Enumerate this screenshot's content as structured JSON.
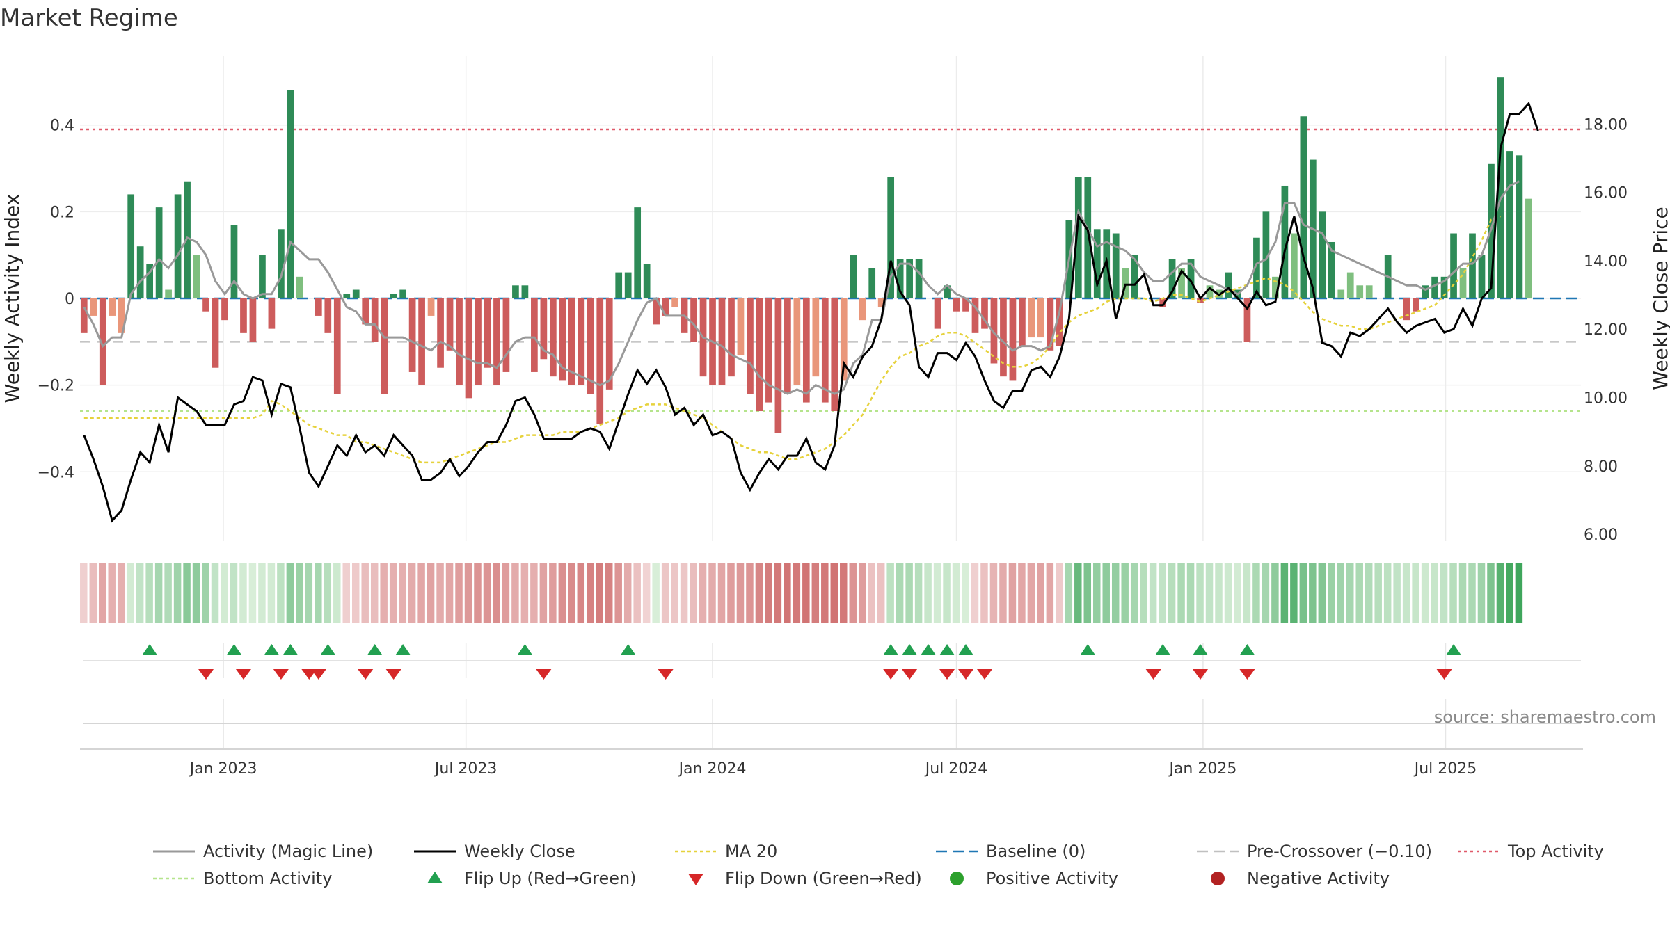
{
  "title": "Market Regime",
  "source": "source: sharemaestro.com",
  "colors": {
    "pos_strong": "#2e8b57",
    "pos_light": "#7fbf7f",
    "neg_strong": "#cd5c5c",
    "neg_light": "#e9967a",
    "activity_line": "#999999",
    "close_line": "#000000",
    "ma20": "#e6d23c",
    "baseline": "#1f77b4",
    "precross": "#c0c0c0",
    "top": "#e05a6a",
    "bottom": "#b5e48c",
    "flip_up": "#22a050",
    "flip_down": "#d62728",
    "pos_dot": "#2ca02c",
    "neg_dot": "#b22222"
  },
  "chart_data": {
    "type": "bar",
    "title": "Market Regime",
    "ylabel_left": "Weekly Activity Index",
    "ylabel_right": "Weekly Close Price",
    "ylim_left": [
      -0.56,
      0.56
    ],
    "ylim_right": [
      5.8,
      20.0
    ],
    "yticks_left": [
      -0.4,
      -0.2,
      0,
      0.2,
      0.4
    ],
    "ytick_labels_left": [
      "−0.4",
      "−0.2",
      "0",
      "0.2",
      "0.4"
    ],
    "yticks_right": [
      6,
      8,
      10,
      12,
      14,
      16,
      18
    ],
    "ytick_labels_right": [
      "6.00",
      "8.00",
      "10.00",
      "12.00",
      "14.00",
      "16.00",
      "18.00"
    ],
    "x_start": "2022-09-19",
    "x_step_days": 7,
    "xlim": [
      "2022-09-16",
      "2025-10-10"
    ],
    "xticks": [
      "2023-01-01",
      "2023-07-01",
      "2024-01-01",
      "2024-07-01",
      "2025-01-01",
      "2025-07-01"
    ],
    "xtick_labels": [
      "Jan 2023",
      "Jul 2023",
      "Jan 2024",
      "Jul 2024",
      "Jan 2025",
      "Jul 2025"
    ],
    "reference_lines": {
      "baseline": 0,
      "pre_crossover": -0.1,
      "top_activity": 0.39,
      "bottom_activity": -0.26
    },
    "activity": [
      -0.08,
      -0.04,
      -0.2,
      -0.04,
      -0.08,
      0.24,
      0.12,
      0.08,
      0.21,
      0.02,
      0.24,
      0.27,
      0.1,
      -0.03,
      -0.16,
      -0.05,
      0.17,
      -0.08,
      -0.1,
      0.1,
      -0.07,
      0.16,
      0.48,
      0.05,
      0,
      -0.04,
      -0.08,
      -0.22,
      0.01,
      0.02,
      -0.06,
      -0.1,
      -0.22,
      0.01,
      0.02,
      -0.17,
      -0.2,
      -0.04,
      -0.16,
      -0.12,
      -0.2,
      -0.23,
      -0.2,
      -0.16,
      -0.2,
      -0.17,
      0.03,
      0.03,
      -0.17,
      -0.14,
      -0.18,
      -0.19,
      -0.2,
      -0.2,
      -0.22,
      -0.29,
      -0.21,
      0.06,
      0.06,
      0.21,
      0.08,
      -0.06,
      -0.04,
      -0.02,
      -0.08,
      -0.1,
      -0.18,
      -0.2,
      -0.2,
      -0.18,
      -0.13,
      -0.22,
      -0.26,
      -0.24,
      -0.31,
      -0.22,
      -0.2,
      -0.24,
      -0.18,
      -0.24,
      -0.26,
      -0.19,
      0.1,
      -0.05,
      0.07,
      -0.02,
      0.28,
      0.09,
      0.09,
      0.09,
      0,
      -0.07,
      0.03,
      -0.03,
      -0.03,
      -0.08,
      -0.07,
      -0.15,
      -0.18,
      -0.19,
      -0.11,
      -0.09,
      -0.09,
      -0.12,
      -0.11,
      0.18,
      0.28,
      0.28,
      0.16,
      0.16,
      0.15,
      0.07,
      0.1,
      0,
      0,
      -0.02,
      0.09,
      0.07,
      0.09,
      -0.01,
      0.03,
      0.02,
      0.06,
      0.02,
      -0.1,
      0.14,
      0.2,
      0.05,
      0.26,
      0.15,
      0.42,
      0.32,
      0.2,
      0.13,
      0.02,
      0.06,
      0.03,
      0.03,
      0,
      0.1,
      0,
      -0.05,
      -0.03,
      0.03,
      0.05,
      0.05,
      0.15,
      0.07,
      0.15,
      0.1,
      0.31,
      0.51,
      0.34,
      0.33,
      0.23
    ],
    "magic_line": [
      -0.02,
      -0.06,
      -0.11,
      -0.09,
      -0.09,
      0.01,
      0.04,
      0.06,
      0.09,
      0.07,
      0.1,
      0.14,
      0.13,
      0.1,
      0.04,
      0.01,
      0.04,
      0.01,
      0,
      0.01,
      0.01,
      0.05,
      0.13,
      0.11,
      0.09,
      0.09,
      0.06,
      0.02,
      -0.02,
      -0.03,
      -0.06,
      -0.06,
      -0.09,
      -0.09,
      -0.09,
      -0.1,
      -0.11,
      -0.12,
      -0.1,
      -0.11,
      -0.13,
      -0.14,
      -0.15,
      -0.15,
      -0.16,
      -0.13,
      -0.1,
      -0.09,
      -0.09,
      -0.12,
      -0.13,
      -0.16,
      -0.17,
      -0.18,
      -0.19,
      -0.2,
      -0.19,
      -0.15,
      -0.1,
      -0.05,
      -0.01,
      0,
      -0.04,
      -0.04,
      -0.04,
      -0.06,
      -0.09,
      -0.1,
      -0.11,
      -0.13,
      -0.14,
      -0.15,
      -0.18,
      -0.2,
      -0.21,
      -0.22,
      -0.21,
      -0.22,
      -0.2,
      -0.21,
      -0.22,
      -0.21,
      -0.15,
      -0.13,
      -0.05,
      -0.05,
      0.05,
      0.08,
      0.08,
      0.06,
      0.03,
      0.01,
      0.03,
      0.01,
      0,
      -0.02,
      -0.05,
      -0.08,
      -0.1,
      -0.12,
      -0.11,
      -0.11,
      -0.12,
      -0.11,
      -0.03,
      0.09,
      0.2,
      0.16,
      0.12,
      0.13,
      0.12,
      0.11,
      0.09,
      0.06,
      0.04,
      0.04,
      0.06,
      0.08,
      0.08,
      0.05,
      0.04,
      0.03,
      0.02,
      0.01,
      0.03,
      0.08,
      0.09,
      0.13,
      0.22,
      0.22,
      0.17,
      0.16,
      0.15,
      0.11,
      0.1,
      0.09,
      0.08,
      0.07,
      0.06,
      0.05,
      0.04,
      0.03,
      0.03,
      0.02,
      0.03,
      0.04,
      0.06,
      0.08,
      0.08,
      0.1,
      0.16,
      0.23,
      0.26,
      0.27
    ],
    "weekly_close": [
      8.9,
      8.2,
      7.4,
      6.4,
      6.7,
      7.6,
      8.4,
      8.1,
      9.2,
      8.4,
      10.0,
      9.8,
      9.6,
      9.2,
      9.2,
      9.2,
      9.8,
      9.9,
      10.6,
      10.5,
      9.5,
      10.4,
      10.3,
      9.1,
      7.8,
      7.4,
      8.0,
      8.6,
      8.3,
      8.9,
      8.4,
      8.6,
      8.3,
      8.9,
      8.6,
      8.3,
      7.6,
      7.6,
      7.8,
      8.2,
      7.7,
      8.0,
      8.4,
      8.7,
      8.7,
      9.2,
      9.9,
      10.0,
      9.5,
      8.8,
      8.8,
      8.8,
      8.8,
      9.0,
      9.1,
      9.0,
      8.5,
      9.3,
      10.1,
      10.8,
      10.4,
      10.8,
      10.3,
      9.5,
      9.7,
      9.2,
      9.5,
      8.9,
      9.0,
      8.8,
      7.8,
      7.3,
      7.8,
      8.2,
      7.9,
      8.3,
      8.3,
      8.8,
      8.1,
      7.9,
      8.6,
      11.0,
      10.6,
      11.2,
      11.5,
      12.3,
      14.0,
      13.1,
      12.7,
      10.9,
      10.6,
      11.3,
      11.3,
      11.1,
      11.6,
      11.2,
      10.5,
      9.9,
      9.7,
      10.2,
      10.2,
      10.8,
      10.9,
      10.6,
      11.2,
      12.3,
      15.3,
      14.9,
      13.3,
      14.0,
      12.3,
      13.3,
      13.3,
      13.6,
      12.7,
      12.7,
      13.1,
      13.7,
      13.4,
      12.9,
      13.2,
      13.0,
      13.2,
      12.9,
      12.6,
      13.1,
      12.7,
      12.8,
      14.3,
      15.3,
      14.1,
      13.2,
      11.6,
      11.5,
      11.2,
      11.9,
      11.8,
      12.0,
      12.3,
      12.6,
      12.2,
      11.9,
      12.1,
      12.2,
      12.3,
      11.9,
      12.0,
      12.6,
      12.1,
      12.9,
      13.2,
      17.3,
      18.3,
      18.3,
      18.6,
      17.8
    ],
    "ma20": [
      9.4,
      9.4,
      9.4,
      9.4,
      9.4,
      9.4,
      9.4,
      9.4,
      9.4,
      9.4,
      9.4,
      9.4,
      9.4,
      9.4,
      9.4,
      9.4,
      9.4,
      9.4,
      9.4,
      9.5,
      9.9,
      9.8,
      9.6,
      9.4,
      9.2,
      9.1,
      9.0,
      8.9,
      8.9,
      8.7,
      8.7,
      8.6,
      8.5,
      8.4,
      8.3,
      8.2,
      8.1,
      8.1,
      8.1,
      8.2,
      8.3,
      8.4,
      8.5,
      8.6,
      8.7,
      8.7,
      8.8,
      8.9,
      8.9,
      8.9,
      8.9,
      9.0,
      9.0,
      9.0,
      9.1,
      9.2,
      9.3,
      9.4,
      9.6,
      9.7,
      9.8,
      9.8,
      9.8,
      9.7,
      9.6,
      9.5,
      9.4,
      9.2,
      9.0,
      8.8,
      8.6,
      8.5,
      8.4,
      8.4,
      8.3,
      8.2,
      8.2,
      8.3,
      8.4,
      8.5,
      8.7,
      8.9,
      9.2,
      9.5,
      10.0,
      10.5,
      10.9,
      11.2,
      11.3,
      11.5,
      11.6,
      11.8,
      11.9,
      11.9,
      11.8,
      11.6,
      11.4,
      11.2,
      11.0,
      10.9,
      10.9,
      11.0,
      11.2,
      11.5,
      11.9,
      12.2,
      12.4,
      12.5,
      12.6,
      12.8,
      12.9,
      12.9,
      12.9,
      12.9,
      12.8,
      12.9,
      13.0,
      13.0,
      12.9,
      12.8,
      12.9,
      13.0,
      13.1,
      13.2,
      13.3,
      13.4,
      13.5,
      13.4,
      13.3,
      13.1,
      12.8,
      12.5,
      12.3,
      12.2,
      12.1,
      12.1,
      12.0,
      12.0,
      12.1,
      12.2,
      12.3,
      12.4,
      12.5,
      12.6,
      12.7,
      13.0,
      13.3,
      13.6,
      14.1,
      14.6,
      15.2,
      15.3
    ],
    "flip_up_dates": [
      "2022-11-07",
      "2023-01-09",
      "2023-02-06",
      "2023-02-20",
      "2023-03-20",
      "2023-04-24",
      "2023-05-15",
      "2023-08-14",
      "2023-10-30",
      "2024-05-13",
      "2024-05-27",
      "2024-06-10",
      "2024-06-24",
      "2024-07-08",
      "2024-10-07",
      "2024-12-02",
      "2024-12-30",
      "2025-02-03",
      "2025-07-07"
    ],
    "flip_down_dates": [
      "2022-12-19",
      "2023-01-16",
      "2023-02-13",
      "2023-03-06",
      "2023-03-13",
      "2023-04-17",
      "2023-05-08",
      "2023-08-28",
      "2023-11-27",
      "2024-05-13",
      "2024-05-27",
      "2024-06-24",
      "2024-07-08",
      "2024-07-22",
      "2024-11-25",
      "2024-12-30",
      "2025-02-03",
      "2025-06-30"
    ],
    "legend": [
      {
        "key": "activity_line",
        "label": "Activity (Magic Line)"
      },
      {
        "key": "close_line",
        "label": "Weekly Close"
      },
      {
        "key": "ma20",
        "label": "MA 20"
      },
      {
        "key": "baseline",
        "label": "Baseline (0)"
      },
      {
        "key": "precross",
        "label": "Pre-Crossover (−0.10)"
      },
      {
        "key": "top",
        "label": "Top Activity"
      },
      {
        "key": "bottom",
        "label": "Bottom Activity"
      },
      {
        "key": "flip_up",
        "label": "Flip Up (Red→Green)"
      },
      {
        "key": "flip_down",
        "label": "Flip Down (Green→Red)"
      },
      {
        "key": "pos_dot",
        "label": "Positive Activity"
      },
      {
        "key": "neg_dot",
        "label": "Negative Activity"
      }
    ],
    "legend_placement": "bottom"
  }
}
